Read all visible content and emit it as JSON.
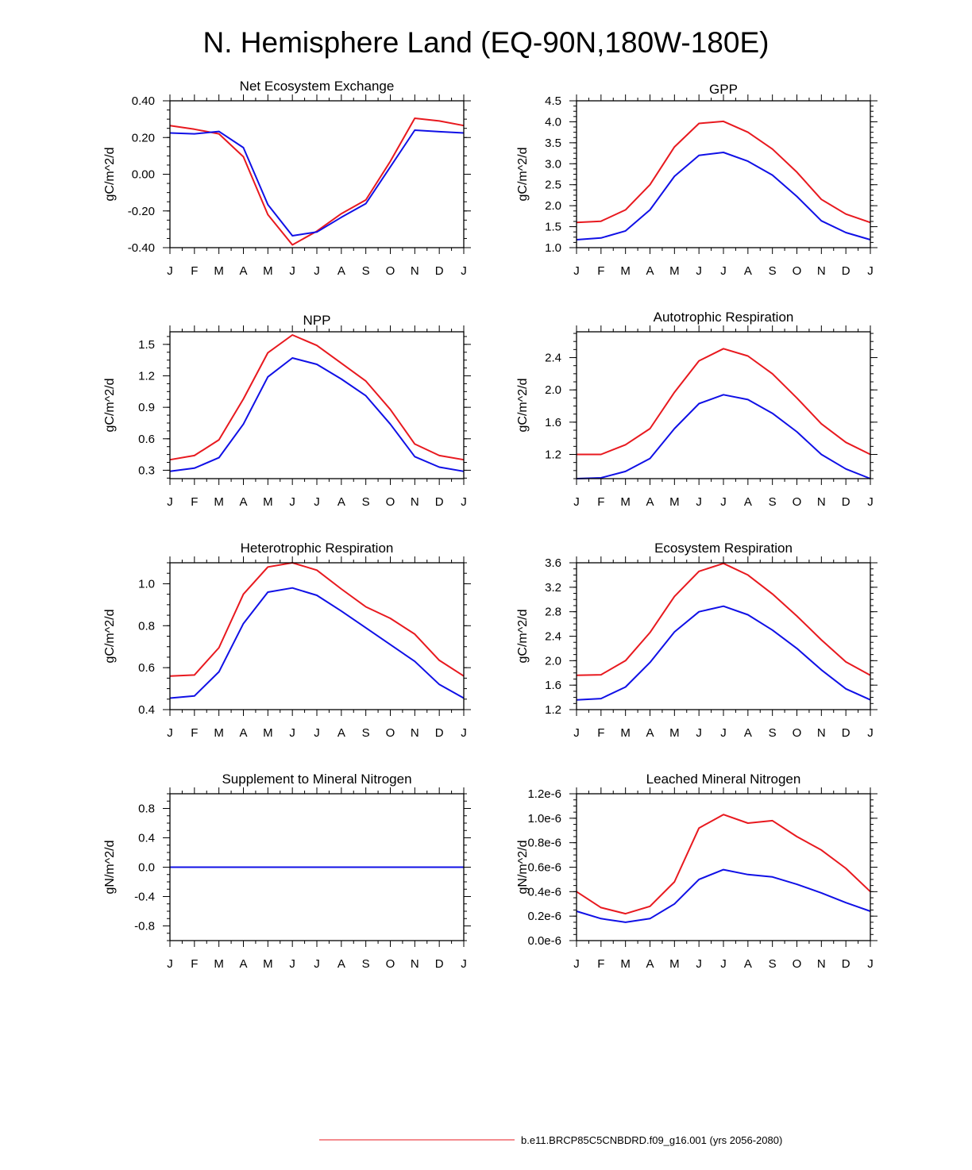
{
  "page": {
    "title": "N. Hemisphere Land (EQ-90N,180W-180E)"
  },
  "colors": {
    "series_a": "#e8191f",
    "series_b": "#1010e6"
  },
  "months": [
    "J",
    "F",
    "M",
    "A",
    "M",
    "J",
    "J",
    "A",
    "S",
    "O",
    "N",
    "D",
    "J"
  ],
  "legend": {
    "label": "b.e11.BRCP85C5CNBDRD.f09_g16.001 (yrs 2056-2080)"
  },
  "chart_data": [
    {
      "type": "line",
      "title": "Net Ecosystem Exchange",
      "ylabel": "gC/m^2/d",
      "ylim": [
        -0.4,
        0.4
      ],
      "yticks": [
        -0.4,
        -0.2,
        0.0,
        0.2,
        0.4
      ],
      "ytick_labels": [
        "-0.40",
        "-0.20",
        "0.00",
        "0.20",
        "0.40"
      ],
      "series": [
        {
          "name": "red",
          "values": [
            0.265,
            0.245,
            0.22,
            0.095,
            -0.22,
            -0.385,
            -0.31,
            -0.215,
            -0.14,
            0.07,
            0.305,
            0.29,
            0.265
          ]
        },
        {
          "name": "blue",
          "values": [
            0.225,
            0.22,
            0.233,
            0.145,
            -0.165,
            -0.335,
            -0.315,
            -0.235,
            -0.16,
            0.04,
            0.24,
            0.232,
            0.225
          ]
        }
      ]
    },
    {
      "type": "line",
      "title": "GPP",
      "ylabel": "gC/m^2/d",
      "ylim": [
        1.0,
        4.5
      ],
      "yticks": [
        1.0,
        1.5,
        2.0,
        2.5,
        3.0,
        3.5,
        4.0,
        4.5
      ],
      "ytick_labels": [
        "1.0",
        "1.5",
        "2.0",
        "2.5",
        "3.0",
        "3.5",
        "4.0",
        "4.5"
      ],
      "series": [
        {
          "name": "red",
          "values": [
            1.6,
            1.63,
            1.9,
            2.5,
            3.4,
            3.96,
            4.01,
            3.75,
            3.35,
            2.8,
            2.15,
            1.8,
            1.6
          ]
        },
        {
          "name": "blue",
          "values": [
            1.19,
            1.23,
            1.4,
            1.9,
            2.7,
            3.2,
            3.27,
            3.06,
            2.73,
            2.22,
            1.64,
            1.36,
            1.19
          ]
        }
      ]
    },
    {
      "type": "line",
      "title": "NPP",
      "ylabel": "gC/m^2/d",
      "ylim": [
        0.22,
        1.62
      ],
      "yticks": [
        0.3,
        0.6,
        0.9,
        1.2,
        1.5
      ],
      "ytick_labels": [
        "0.3",
        "0.6",
        "0.9",
        "1.2",
        "1.5"
      ],
      "series": [
        {
          "name": "red",
          "values": [
            0.4,
            0.44,
            0.59,
            0.98,
            1.42,
            1.59,
            1.49,
            1.32,
            1.15,
            0.88,
            0.55,
            0.44,
            0.4
          ]
        },
        {
          "name": "blue",
          "values": [
            0.29,
            0.32,
            0.42,
            0.74,
            1.19,
            1.37,
            1.31,
            1.17,
            1.01,
            0.74,
            0.43,
            0.33,
            0.29
          ]
        }
      ]
    },
    {
      "type": "line",
      "title": "Autotrophic Respiration",
      "ylabel": "gC/m^2/d",
      "ylim": [
        0.9,
        2.72
      ],
      "yticks": [
        1.2,
        1.6,
        2.0,
        2.4
      ],
      "ytick_labels": [
        "1.2",
        "1.6",
        "2.0",
        "2.4"
      ],
      "series": [
        {
          "name": "red",
          "values": [
            1.2,
            1.2,
            1.32,
            1.52,
            1.97,
            2.36,
            2.51,
            2.42,
            2.2,
            1.9,
            1.58,
            1.35,
            1.2
          ]
        },
        {
          "name": "blue",
          "values": [
            0.9,
            0.91,
            0.99,
            1.15,
            1.52,
            1.83,
            1.94,
            1.88,
            1.71,
            1.48,
            1.2,
            1.02,
            0.9
          ]
        }
      ]
    },
    {
      "type": "line",
      "title": "Heterotrophic Respiration",
      "ylabel": "gC/m^2/d",
      "ylim": [
        0.4,
        1.1
      ],
      "yticks": [
        0.4,
        0.6,
        0.8,
        1.0
      ],
      "ytick_labels": [
        "0.4",
        "0.6",
        "0.8",
        "1.0"
      ],
      "series": [
        {
          "name": "red",
          "values": [
            0.56,
            0.565,
            0.695,
            0.95,
            1.08,
            1.1,
            1.065,
            0.975,
            0.89,
            0.835,
            0.76,
            0.635,
            0.56
          ]
        },
        {
          "name": "blue",
          "values": [
            0.455,
            0.465,
            0.58,
            0.81,
            0.96,
            0.98,
            0.945,
            0.87,
            0.79,
            0.71,
            0.63,
            0.52,
            0.455
          ]
        }
      ]
    },
    {
      "type": "line",
      "title": "Ecosystem Respiration",
      "ylabel": "gC/m^2/d",
      "ylim": [
        1.2,
        3.6
      ],
      "yticks": [
        1.2,
        1.6,
        2.0,
        2.4,
        2.8,
        3.2,
        3.6
      ],
      "ytick_labels": [
        "1.2",
        "1.6",
        "2.0",
        "2.4",
        "2.8",
        "3.2",
        "3.6"
      ],
      "series": [
        {
          "name": "red",
          "values": [
            1.76,
            1.77,
            2.0,
            2.46,
            3.05,
            3.46,
            3.59,
            3.4,
            3.09,
            2.73,
            2.34,
            1.98,
            1.76
          ]
        },
        {
          "name": "blue",
          "values": [
            1.36,
            1.38,
            1.57,
            1.97,
            2.47,
            2.8,
            2.89,
            2.75,
            2.5,
            2.2,
            1.85,
            1.54,
            1.36
          ]
        }
      ]
    },
    {
      "type": "line",
      "title": "Supplement to Mineral Nitrogen",
      "ylabel": "gN/m^2/d",
      "ylim": [
        -1.0,
        1.0
      ],
      "yticks": [
        -0.8,
        -0.4,
        0.0,
        0.4,
        0.8
      ],
      "ytick_labels": [
        "-0.8",
        "-0.4",
        "0.0",
        "0.4",
        "0.8"
      ],
      "series": [
        {
          "name": "red",
          "values": [
            0,
            0,
            0,
            0,
            0,
            0,
            0,
            0,
            0,
            0,
            0,
            0,
            0
          ]
        },
        {
          "name": "blue",
          "values": [
            0,
            0,
            0,
            0,
            0,
            0,
            0,
            0,
            0,
            0,
            0,
            0,
            0
          ]
        }
      ]
    },
    {
      "type": "line",
      "title": "Leached Mineral Nitrogen",
      "ylabel": "gN/m^2/d",
      "ylim": [
        0.0,
        1.2
      ],
      "yticks": [
        0.0,
        0.2,
        0.4,
        0.6,
        0.8,
        1.0,
        1.2
      ],
      "ytick_labels": [
        "0.0e-6",
        "0.2e-6",
        "0.4e-6",
        "0.6e-6",
        "0.8e-6",
        "1.0e-6",
        "1.2e-6"
      ],
      "series": [
        {
          "name": "red",
          "values": [
            0.4,
            0.27,
            0.22,
            0.28,
            0.48,
            0.92,
            1.03,
            0.96,
            0.98,
            0.85,
            0.74,
            0.59,
            0.4
          ]
        },
        {
          "name": "blue",
          "values": [
            0.24,
            0.18,
            0.15,
            0.18,
            0.3,
            0.5,
            0.58,
            0.54,
            0.52,
            0.46,
            0.39,
            0.31,
            0.24
          ]
        }
      ]
    }
  ]
}
